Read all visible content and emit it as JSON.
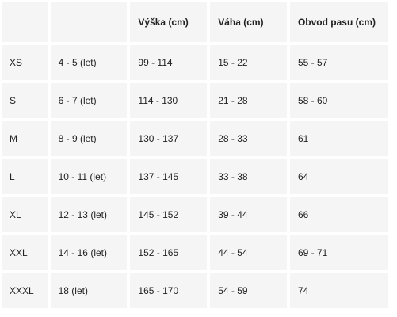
{
  "table": {
    "headers": [
      "",
      "",
      "Výška (cm)",
      "Váha (cm)",
      "Obvod pasu (cm)"
    ],
    "rows": [
      [
        "XS",
        "4 - 5 (let)",
        "99 - 114",
        "15 - 22",
        "55 - 57"
      ],
      [
        "S",
        "6 - 7 (let)",
        "114 - 130",
        "21 - 28",
        "58 - 60"
      ],
      [
        "M",
        "8 - 9 (let)",
        "130 - 137",
        "28 - 33",
        "61"
      ],
      [
        "L",
        "10 - 11 (let)",
        "137 - 145",
        "33 - 38",
        "64"
      ],
      [
        "XL",
        "12 - 13 (let)",
        "145 - 152",
        "39 - 44",
        "66"
      ],
      [
        "XXL",
        "14 - 16 (let)",
        "152 - 165",
        "44 - 54",
        "69 - 71"
      ],
      [
        "XXXL",
        "18 (let)",
        "165 - 170",
        "54 - 59",
        "74"
      ]
    ]
  },
  "colors": {
    "cell_background": "#f5f5f5",
    "text": "#222222"
  }
}
